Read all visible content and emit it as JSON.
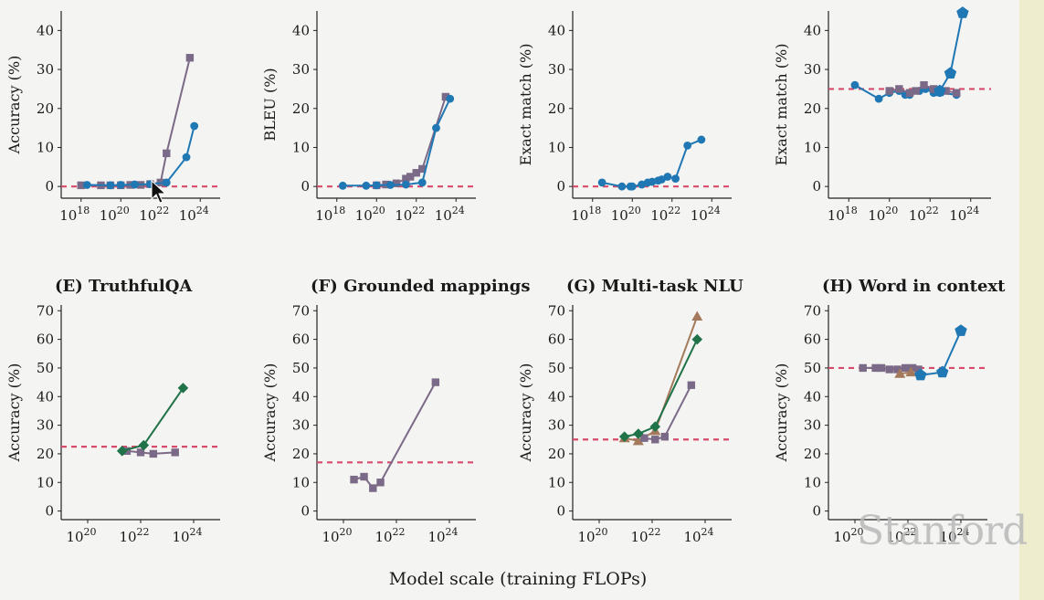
{
  "footer": {
    "xlabel": "Model scale (training FLOPs)",
    "watermark": "Stanford"
  },
  "chart_data": [
    {
      "type": "line",
      "title": "",
      "ylabel": "Accuracy (%)",
      "xscale": "log",
      "xlim": [
        1e+17,
        1e+25
      ],
      "ylim": [
        -3,
        45
      ],
      "xticks": [
        "18",
        "20",
        "22",
        "24"
      ],
      "yticks": [
        0,
        10,
        20,
        30,
        40
      ],
      "baseline": 0,
      "series": [
        {
          "color": "#7b6a87",
          "marker": "square",
          "points": [
            [
              1e+18,
              0.3
            ],
            [
              1e+19,
              0.3
            ],
            [
              3e+19,
              0.3
            ],
            [
              1e+20,
              0.3
            ],
            [
              3e+20,
              0.4
            ],
            [
              1e+21,
              0.4
            ],
            [
              3e+21,
              0.6
            ],
            [
              1e+22,
              1
            ],
            [
              2e+22,
              8.5
            ],
            [
              3e+23,
              33
            ]
          ]
        },
        {
          "color": "#1f77b4",
          "marker": "circle",
          "points": [
            [
              2e+18,
              0.4
            ],
            [
              3e+19,
              0.3
            ],
            [
              1e+20,
              0.4
            ],
            [
              5e+20,
              0.5
            ],
            [
              3e+21,
              0.6
            ],
            [
              2e+22,
              1
            ],
            [
              2e+23,
              7.5
            ],
            [
              5e+23,
              15.5
            ]
          ]
        }
      ]
    },
    {
      "type": "line",
      "title": "",
      "ylabel": "BLEU (%)",
      "xscale": "log",
      "xlim": [
        1e+17,
        1e+25
      ],
      "ylim": [
        -3,
        45
      ],
      "xticks": [
        "18",
        "20",
        "22",
        "24"
      ],
      "yticks": [
        0,
        10,
        20,
        30,
        40
      ],
      "baseline": 0,
      "series": [
        {
          "color": "#7b6a87",
          "marker": "square",
          "points": [
            [
              1e+20,
              0.3
            ],
            [
              3e+20,
              0.5
            ],
            [
              1e+21,
              0.8
            ],
            [
              3e+21,
              2
            ],
            [
              5e+21,
              2.5
            ],
            [
              1e+22,
              3.5
            ],
            [
              2e+22,
              4.5
            ],
            [
              3e+23,
              23
            ]
          ]
        },
        {
          "color": "#1f77b4",
          "marker": "circle",
          "points": [
            [
              2e+18,
              0.2
            ],
            [
              3e+19,
              0.2
            ],
            [
              1e+20,
              0.3
            ],
            [
              5e+20,
              0.4
            ],
            [
              3e+21,
              0.5
            ],
            [
              2e+22,
              1
            ],
            [
              1e+23,
              15
            ],
            [
              5e+23,
              22.5
            ]
          ]
        }
      ]
    },
    {
      "type": "line",
      "title": "",
      "ylabel": "Exact match (%)",
      "xscale": "log",
      "xlim": [
        1e+17,
        1e+25
      ],
      "ylim": [
        -3,
        45
      ],
      "xticks": [
        "18",
        "20",
        "22",
        "24"
      ],
      "yticks": [
        0,
        10,
        20,
        30,
        40
      ],
      "baseline": 0,
      "series": [
        {
          "color": "#1f77b4",
          "marker": "circle",
          "points": [
            [
              3e+18,
              1
            ],
            [
              3e+19,
              0
            ],
            [
              8e+19,
              0
            ],
            [
              1e+20,
              0
            ],
            [
              3e+20,
              0.5
            ],
            [
              6e+20,
              1
            ],
            [
              1e+21,
              1.2
            ],
            [
              2e+21,
              1.5
            ],
            [
              3e+21,
              1.8
            ],
            [
              6e+21,
              2.5
            ],
            [
              1.5e+22,
              2
            ],
            [
              6e+22,
              10.5
            ],
            [
              3e+23,
              12
            ]
          ]
        }
      ]
    },
    {
      "type": "line",
      "title": "",
      "ylabel": "Exact match (%)",
      "xscale": "log",
      "xlim": [
        1e+17,
        1e+25
      ],
      "ylim": [
        -3,
        45
      ],
      "xticks": [
        "18",
        "20",
        "22",
        "24"
      ],
      "yticks": [
        0,
        10,
        20,
        30,
        40
      ],
      "baseline": 25,
      "series": [
        {
          "color": "#1f77b4",
          "marker": "circle",
          "points": [
            [
              2e+18,
              26
            ],
            [
              3e+19,
              22.5
            ],
            [
              1e+20,
              24
            ],
            [
              3e+20,
              24.5
            ],
            [
              6e+20,
              23.5
            ],
            [
              1e+21,
              23.5
            ],
            [
              3e+21,
              24.5
            ],
            [
              6e+21,
              25
            ],
            [
              1.5e+22,
              24
            ],
            [
              3e+22,
              24
            ],
            [
              2e+23,
              23.5
            ]
          ]
        },
        {
          "color": "#7b6a87",
          "marker": "square",
          "points": [
            [
              1e+20,
              24.5
            ],
            [
              3e+20,
              25
            ],
            [
              1e+21,
              24
            ],
            [
              2e+21,
              24.5
            ],
            [
              5e+21,
              26
            ],
            [
              1.5e+22,
              25
            ],
            [
              6e+22,
              24.5
            ],
            [
              2e+23,
              24
            ]
          ]
        },
        {
          "color": "#1f77b4",
          "marker": "pentagon",
          "points": [
            [
              3e+22,
              24.5
            ],
            [
              1e+23,
              29
            ],
            [
              4e+23,
              44.5
            ]
          ]
        }
      ]
    },
    {
      "type": "line",
      "title": "(E) TruthfulQA",
      "ylabel": "Accuracy (%)",
      "xscale": "log",
      "xlim": [
        1e+19,
        1e+25
      ],
      "ylim": [
        -3,
        72
      ],
      "xticks": [
        "20",
        "22",
        "24"
      ],
      "yticks": [
        0,
        10,
        20,
        30,
        40,
        50,
        60,
        70
      ],
      "baseline": 22.5,
      "series": [
        {
          "color": "#7b6a87",
          "marker": "square",
          "points": [
            [
              3e+21,
              21
            ],
            [
              1e+22,
              20.5
            ],
            [
              3e+22,
              20
            ],
            [
              2e+23,
              20.5
            ]
          ]
        },
        {
          "color": "#207248",
          "marker": "diamond",
          "points": [
            [
              2e+21,
              21
            ],
            [
              1.3e+22,
              23
            ],
            [
              4e+23,
              43
            ]
          ]
        }
      ]
    },
    {
      "type": "line",
      "title": "(F) Grounded mappings",
      "ylabel": "Accuracy (%)",
      "xscale": "log",
      "xlim": [
        1e+19,
        1e+25
      ],
      "ylim": [
        -3,
        72
      ],
      "xticks": [
        "20",
        "22",
        "24"
      ],
      "yticks": [
        0,
        10,
        20,
        30,
        40,
        50,
        60,
        70
      ],
      "baseline": 17,
      "series": [
        {
          "color": "#7b6a87",
          "marker": "square",
          "points": [
            [
              2.5e+20,
              11
            ],
            [
              6e+20,
              12
            ],
            [
              1.3e+21,
              8
            ],
            [
              2.5e+21,
              10
            ],
            [
              3e+23,
              45
            ]
          ]
        }
      ]
    },
    {
      "type": "line",
      "title": "(G) Multi-task NLU",
      "ylabel": "Accuracy (%)",
      "xscale": "log",
      "xlim": [
        1e+19,
        1e+25
      ],
      "ylim": [
        -3,
        72
      ],
      "xticks": [
        "20",
        "22",
        "24"
      ],
      "yticks": [
        0,
        10,
        20,
        30,
        40,
        50,
        60,
        70
      ],
      "baseline": 25,
      "series": [
        {
          "color": "#a57a5c",
          "marker": "triangle",
          "points": [
            [
              9e+20,
              25.5
            ],
            [
              3e+21,
              24.5
            ],
            [
              1.3e+22,
              28
            ],
            [
              5e+23,
              68
            ]
          ]
        },
        {
          "color": "#7b6a87",
          "marker": "square",
          "points": [
            [
              5e+21,
              25.5
            ],
            [
              1.3e+22,
              25
            ],
            [
              3e+22,
              26
            ],
            [
              3e+23,
              44
            ]
          ]
        },
        {
          "color": "#207248",
          "marker": "diamond",
          "points": [
            [
              9e+20,
              26
            ],
            [
              3e+21,
              27
            ],
            [
              1.3e+22,
              29.5
            ],
            [
              5e+23,
              60
            ]
          ]
        }
      ]
    },
    {
      "type": "line",
      "title": "(H) Word in context",
      "ylabel": "Accuracy (%)",
      "xscale": "log",
      "xlim": [
        1e+19,
        1e+25
      ],
      "ylim": [
        -3,
        72
      ],
      "xticks": [
        "20",
        "22",
        "24"
      ],
      "yticks": [
        0,
        10,
        20,
        30,
        40,
        50,
        60,
        70
      ],
      "baseline": 50,
      "series": [
        {
          "color": "#7b6a87",
          "marker": "square",
          "points": [
            [
              2e+20,
              50
            ],
            [
              6e+20,
              50
            ],
            [
              1e+21,
              50
            ],
            [
              2e+21,
              49.5
            ],
            [
              4e+21,
              49.5
            ],
            [
              8e+21,
              50
            ],
            [
              1.5e+22,
              50
            ],
            [
              2.5e+22,
              49.5
            ]
          ]
        },
        {
          "color": "#a57a5c",
          "marker": "triangle",
          "points": [
            [
              5e+21,
              48
            ],
            [
              1.3e+22,
              48.5
            ]
          ]
        },
        {
          "color": "#1f77b4",
          "marker": "pentagon",
          "points": [
            [
              3e+22,
              47.5
            ],
            [
              2e+23,
              48.5
            ],
            [
              1e+24,
              63
            ]
          ]
        }
      ]
    }
  ]
}
